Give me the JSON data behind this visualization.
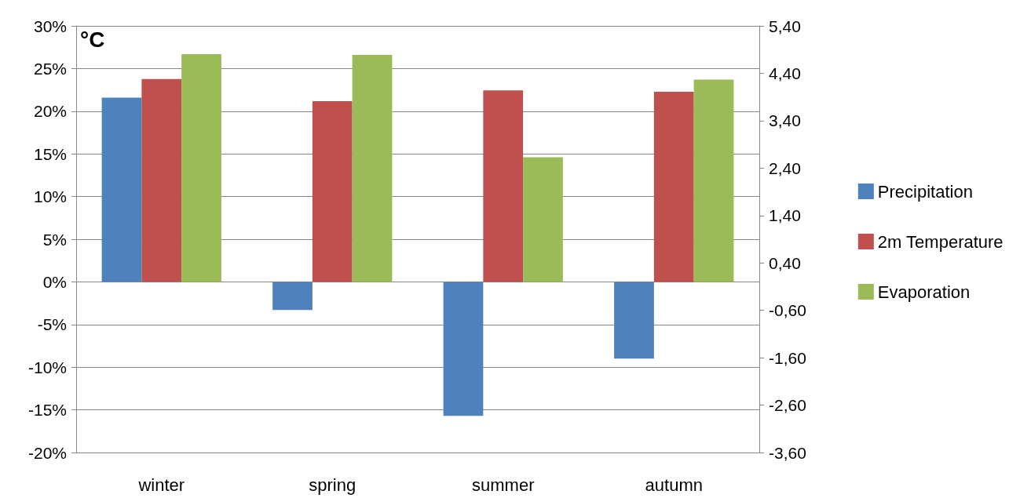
{
  "chart_data": {
    "type": "bar",
    "categories": [
      "winter",
      "spring",
      "summer",
      "autumn"
    ],
    "series": [
      {
        "name": "Precipitation",
        "color": "#4f81bd",
        "values": [
          21.6,
          -3.3,
          -15.7,
          -9.0
        ]
      },
      {
        "name": "2m Temperature",
        "color": "#c0504d",
        "axis": "y2",
        "values": [
          4.28,
          3.81,
          4.04,
          4.01
        ]
      },
      {
        "name": "Evaporation",
        "color": "#9bbb59",
        "values": [
          26.7,
          26.6,
          14.6,
          23.7
        ]
      }
    ],
    "ylim": [
      -20,
      30
    ],
    "yticks": [
      {
        "value": -20,
        "label": "-20%"
      },
      {
        "value": -15,
        "label": "-15%"
      },
      {
        "value": -10,
        "label": "-10%"
      },
      {
        "value": -5,
        "label": "-5%"
      },
      {
        "value": 0,
        "label": "0%"
      },
      {
        "value": 5,
        "label": "5%"
      },
      {
        "value": 10,
        "label": "10%"
      },
      {
        "value": 15,
        "label": "15%"
      },
      {
        "value": 20,
        "label": "20%"
      },
      {
        "value": 25,
        "label": "25%"
      },
      {
        "value": 30,
        "label": "30%"
      }
    ],
    "y2lim": [
      -3.6,
      5.4
    ],
    "y2ticks": [
      {
        "value": -3.6,
        "label": "-3,60"
      },
      {
        "value": -2.6,
        "label": "-2,60"
      },
      {
        "value": -1.6,
        "label": "-1,60"
      },
      {
        "value": -0.6,
        "label": "-0,60"
      },
      {
        "value": 0.4,
        "label": "0,40"
      },
      {
        "value": 1.4,
        "label": "1,40"
      },
      {
        "value": 2.4,
        "label": "2,40"
      },
      {
        "value": 3.4,
        "label": "3,40"
      },
      {
        "value": 4.4,
        "label": "4,40"
      },
      {
        "value": 5.4,
        "label": "5,40"
      }
    ],
    "annotations": [
      "°C"
    ],
    "grid": "y",
    "legend": "right"
  }
}
